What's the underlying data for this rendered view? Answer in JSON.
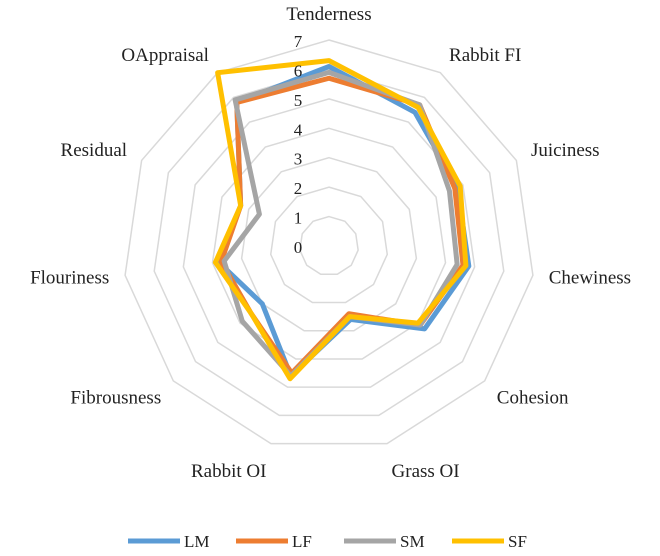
{
  "chart_data": {
    "type": "radar",
    "categories": [
      "Tenderness",
      "Rabbit FI",
      "Juiciness",
      "Chewiness",
      "Cohesion",
      "Grass OI",
      "Rabbit OI",
      "Fibrousness",
      "Flouriness",
      "Residual",
      "OAppraisal"
    ],
    "rticks": [
      "0",
      "1",
      "2",
      "3",
      "4",
      "5",
      "6",
      "7"
    ],
    "rlim": [
      0,
      7
    ],
    "grid": true,
    "legend_position": "bottom",
    "series": [
      {
        "name": "LM",
        "color": "#5B9BD5",
        "values": [
          6.1,
          5.4,
          4.8,
          4.8,
          4.3,
          2.6,
          4.6,
          3.0,
          3.8,
          3.3,
          5.8
        ]
      },
      {
        "name": "LF",
        "color": "#ED7D31",
        "values": [
          5.7,
          5.7,
          4.7,
          4.6,
          4.1,
          2.4,
          4.5,
          3.5,
          3.7,
          3.3,
          5.8
        ]
      },
      {
        "name": "SM",
        "color": "#A5A5A5",
        "values": [
          5.9,
          5.7,
          4.5,
          4.4,
          4.1,
          2.5,
          4.6,
          3.9,
          3.6,
          2.6,
          5.9
        ]
      },
      {
        "name": "SF",
        "color": "#FFC000",
        "values": [
          6.3,
          5.6,
          4.9,
          4.7,
          4.0,
          2.5,
          4.7,
          3.5,
          3.9,
          3.3,
          7.0
        ]
      }
    ]
  }
}
